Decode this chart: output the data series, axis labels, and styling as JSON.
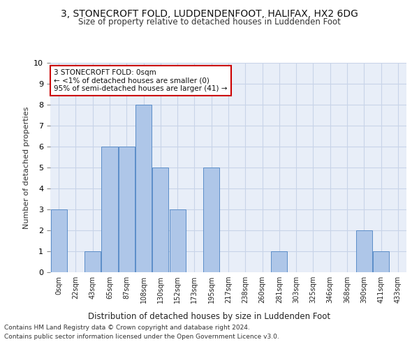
{
  "title": "3, STONECROFT FOLD, LUDDENDENFOOT, HALIFAX, HX2 6DG",
  "subtitle": "Size of property relative to detached houses in Luddenden Foot",
  "xlabel": "Distribution of detached houses by size in Luddenden Foot",
  "ylabel": "Number of detached properties",
  "categories": [
    "0sqm",
    "22sqm",
    "43sqm",
    "65sqm",
    "87sqm",
    "108sqm",
    "130sqm",
    "152sqm",
    "173sqm",
    "195sqm",
    "217sqm",
    "238sqm",
    "260sqm",
    "281sqm",
    "303sqm",
    "325sqm",
    "346sqm",
    "368sqm",
    "390sqm",
    "411sqm",
    "433sqm"
  ],
  "values": [
    3,
    0,
    1,
    6,
    6,
    8,
    5,
    3,
    0,
    5,
    0,
    0,
    0,
    1,
    0,
    0,
    0,
    0,
    2,
    1,
    0
  ],
  "bar_color": "#aec6e8",
  "bar_edge_color": "#5b8dc8",
  "ylim": [
    0,
    10
  ],
  "yticks": [
    0,
    1,
    2,
    3,
    4,
    5,
    6,
    7,
    8,
    9,
    10
  ],
  "annotation_text": "3 STONECROFT FOLD: 0sqm\n← <1% of detached houses are smaller (0)\n95% of semi-detached houses are larger (41) →",
  "annotation_box_color": "#ffffff",
  "annotation_box_edge": "#cc0000",
  "footnote1": "Contains HM Land Registry data © Crown copyright and database right 2024.",
  "footnote2": "Contains public sector information licensed under the Open Government Licence v3.0.",
  "grid_color": "#c8d4e8",
  "bg_color": "#e8eef8"
}
